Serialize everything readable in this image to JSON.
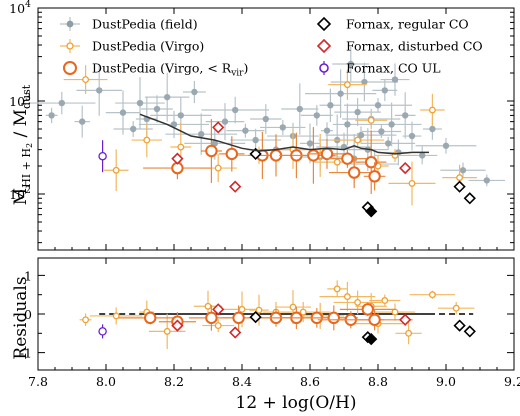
{
  "chart_data": [
    {
      "type": "scatter",
      "panel": "top",
      "xlabel": "",
      "ylabel": "M_{HI+H2} / M_dust",
      "xlim": [
        7.8,
        9.2
      ],
      "ylim": [
        25,
        10000
      ],
      "yscale": "log",
      "ytick_labels": [
        "10^2",
        "10^3",
        "10^4"
      ],
      "legend_position": "top",
      "legend": [
        {
          "label": "DustPedia (field)",
          "marker": "filled-circle",
          "color": "#8e9ea6"
        },
        {
          "label": "DustPedia (Virgo)",
          "marker": "small-open-circle",
          "color": "#f0a030"
        },
        {
          "label": "DustPedia (Virgo, < R_vir)",
          "marker": "large-open-circle",
          "color": "#e8671e"
        },
        {
          "label": "Fornax, regular CO",
          "marker": "open-diamond",
          "color": "#000000"
        },
        {
          "label": "Fornax, disturbed CO",
          "marker": "open-diamond",
          "color": "#d62728"
        },
        {
          "label": "Fornax, CO UL",
          "marker": "open-circle",
          "color": "#6a1fd1"
        }
      ],
      "series": [
        {
          "name": "DustPedia (field)",
          "points": [
            [
              7.84,
              700
            ],
            [
              7.87,
              950
            ],
            [
              7.93,
              600
            ],
            [
              7.98,
              1300
            ],
            [
              8.05,
              750
            ],
            [
              8.08,
              500
            ],
            [
              8.1,
              950
            ],
            [
              8.12,
              640
            ],
            [
              8.15,
              820
            ],
            [
              8.18,
              1100
            ],
            [
              8.2,
              560
            ],
            [
              8.22,
              700
            ],
            [
              8.26,
              1250
            ],
            [
              8.28,
              440
            ],
            [
              8.32,
              350
            ],
            [
              8.35,
              600
            ],
            [
              8.38,
              800
            ],
            [
              8.41,
              480
            ],
            [
              8.44,
              380
            ],
            [
              8.47,
              640
            ],
            [
              8.5,
              300
            ],
            [
              8.52,
              520
            ],
            [
              8.55,
              420
            ],
            [
              8.57,
              820
            ],
            [
              8.6,
              350
            ],
            [
              8.62,
              700
            ],
            [
              8.63,
              250
            ],
            [
              8.65,
              480
            ],
            [
              8.66,
              900
            ],
            [
              8.68,
              380
            ],
            [
              8.69,
              1200
            ],
            [
              8.7,
              320
            ],
            [
              8.71,
              560
            ],
            [
              8.72,
              2500
            ],
            [
              8.73,
              240
            ],
            [
              8.74,
              760
            ],
            [
              8.75,
              430
            ],
            [
              8.76,
              1600
            ],
            [
              8.77,
              300
            ],
            [
              8.78,
              640
            ],
            [
              8.79,
              210
            ],
            [
              8.8,
              900
            ],
            [
              8.81,
              470
            ],
            [
              8.82,
              1300
            ],
            [
              8.83,
              350
            ],
            [
              8.84,
              560
            ],
            [
              8.85,
              1700
            ],
            [
              8.86,
              280
            ],
            [
              8.88,
              700
            ],
            [
              8.9,
              420
            ],
            [
              8.93,
              260
            ],
            [
              8.96,
              500
            ],
            [
              9.0,
              330
            ],
            [
              9.05,
              180
            ],
            [
              9.12,
              140
            ]
          ]
        },
        {
          "name": "DustPedia (Virgo)",
          "points": [
            [
              7.94,
              1700
            ],
            [
              8.03,
              180
            ],
            [
              8.12,
              380
            ],
            [
              8.22,
              320
            ],
            [
              8.33,
              190
            ],
            [
              8.45,
              260
            ],
            [
              8.55,
              300
            ],
            [
              8.63,
              260
            ],
            [
              8.68,
              220
            ],
            [
              8.71,
              1500
            ],
            [
              8.74,
              380
            ],
            [
              8.78,
              620
            ],
            [
              8.8,
              200
            ],
            [
              8.85,
              260
            ],
            [
              8.9,
              130
            ],
            [
              8.96,
              800
            ],
            [
              9.04,
              150
            ]
          ]
        },
        {
          "name": "DustPedia (Virgo, < R_vir)",
          "points": [
            [
              8.21,
              190
            ],
            [
              8.31,
              290
            ],
            [
              8.37,
              270
            ],
            [
              8.46,
              260
            ],
            [
              8.5,
              260
            ],
            [
              8.56,
              260
            ],
            [
              8.61,
              260
            ],
            [
              8.65,
              270
            ],
            [
              8.71,
              240
            ],
            [
              8.73,
              170
            ],
            [
              8.78,
              220
            ],
            [
              8.79,
              155
            ]
          ]
        },
        {
          "name": "Fornax, regular CO",
          "points": [
            [
              8.44,
              270
            ],
            [
              8.77,
              72
            ],
            [
              9.04,
              120
            ],
            [
              9.07,
              90
            ]
          ]
        },
        {
          "name": "Fornax, regular CO (filled)",
          "points": [
            [
              8.78,
              65
            ]
          ]
        },
        {
          "name": "Fornax, disturbed CO",
          "points": [
            [
              8.21,
              240
            ],
            [
              8.33,
              520
            ],
            [
              8.38,
              120
            ],
            [
              8.88,
              190
            ]
          ]
        },
        {
          "name": "Fornax, CO UL",
          "points": [
            [
              7.99,
              255
            ]
          ]
        },
        {
          "name": "",
          "line": true,
          "points": [
            [
              8.1,
              720
            ],
            [
              8.18,
              560
            ],
            [
              8.25,
              420
            ],
            [
              8.32,
              380
            ],
            [
              8.4,
              310
            ],
            [
              8.45,
              290
            ],
            [
              8.5,
              300
            ],
            [
              8.55,
              320
            ],
            [
              8.6,
              300
            ],
            [
              8.65,
              310
            ],
            [
              8.7,
              300
            ],
            [
              8.73,
              330
            ],
            [
              8.75,
              310
            ],
            [
              8.78,
              300
            ],
            [
              8.8,
              280
            ],
            [
              8.85,
              270
            ],
            [
              8.9,
              280
            ],
            [
              8.95,
              280
            ]
          ]
        }
      ]
    },
    {
      "type": "scatter",
      "panel": "bottom",
      "xlabel": "12 + log(O/H)",
      "ylabel": "Residuals",
      "xlim": [
        7.8,
        9.2
      ],
      "ylim": [
        -1.45,
        1.45
      ],
      "x_ticks": [
        7.8,
        8.0,
        8.2,
        8.4,
        8.6,
        8.8,
        9.0,
        9.2
      ],
      "y_ticks": [
        -1,
        0,
        1
      ],
      "series": [
        {
          "name": "DustPedia (Virgo)",
          "points": [
            [
              7.94,
              -0.15
            ],
            [
              8.03,
              -0.05
            ],
            [
              8.12,
              0.05
            ],
            [
              8.18,
              -0.45
            ],
            [
              8.3,
              0.2
            ],
            [
              8.33,
              -0.3
            ],
            [
              8.4,
              0.12
            ],
            [
              8.45,
              0.1
            ],
            [
              8.5,
              0.05
            ],
            [
              8.55,
              0.18
            ],
            [
              8.58,
              0.05
            ],
            [
              8.63,
              -0.05
            ],
            [
              8.68,
              0.65
            ],
            [
              8.71,
              0.45
            ],
            [
              8.74,
              0.3
            ],
            [
              8.78,
              0.2
            ],
            [
              8.8,
              -0.25
            ],
            [
              8.82,
              0.35
            ],
            [
              8.85,
              0.05
            ],
            [
              8.89,
              -0.5
            ],
            [
              8.96,
              0.5
            ],
            [
              9.03,
              0.15
            ]
          ]
        },
        {
          "name": "DustPedia (Virgo, < R_vir)",
          "points": [
            [
              8.13,
              -0.1
            ],
            [
              8.21,
              -0.2
            ],
            [
              8.31,
              -0.1
            ],
            [
              8.39,
              -0.1
            ],
            [
              8.5,
              -0.1
            ],
            [
              8.56,
              -0.1
            ],
            [
              8.62,
              -0.1
            ],
            [
              8.67,
              -0.1
            ],
            [
              8.72,
              -0.15
            ],
            [
              8.77,
              0.12
            ],
            [
              8.79,
              -0.15
            ]
          ]
        },
        {
          "name": "Fornax, regular CO",
          "points": [
            [
              8.44,
              -0.08
            ],
            [
              8.77,
              -0.6
            ],
            [
              9.04,
              -0.3
            ],
            [
              9.07,
              -0.45
            ]
          ]
        },
        {
          "name": "Fornax, regular CO (filled)",
          "points": [
            [
              8.78,
              -0.65
            ]
          ]
        },
        {
          "name": "Fornax, disturbed CO",
          "points": [
            [
              8.21,
              -0.3
            ],
            [
              8.33,
              0.12
            ],
            [
              8.38,
              -0.48
            ],
            [
              8.88,
              -0.15
            ]
          ]
        },
        {
          "name": "Fornax, CO UL",
          "points": [
            [
              7.99,
              -0.45
            ]
          ]
        }
      ]
    }
  ]
}
